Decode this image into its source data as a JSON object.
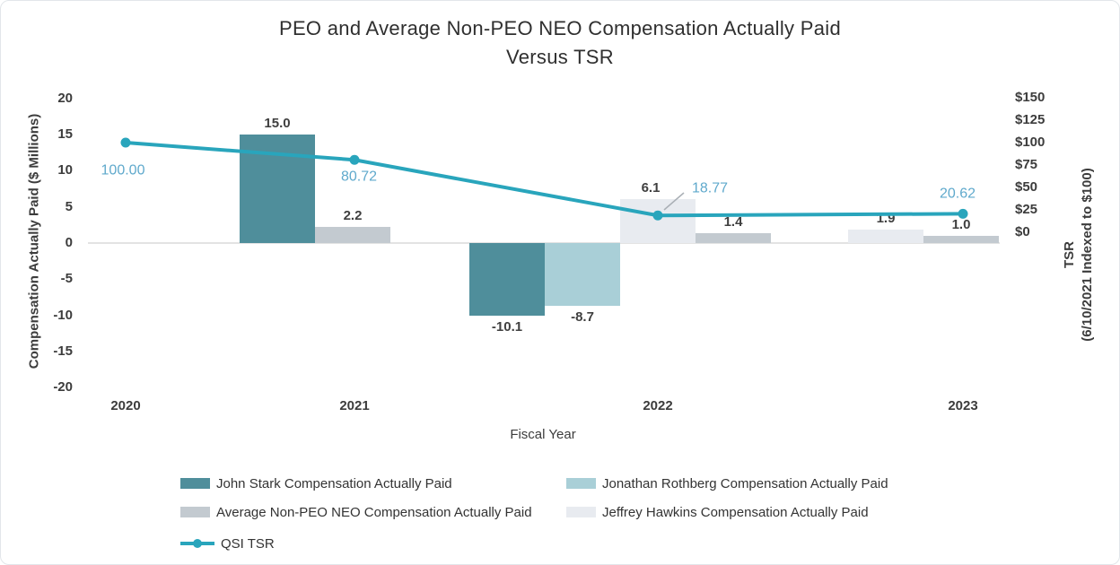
{
  "page": {
    "background": "#ffffff",
    "border_color": "#e2e6ea"
  },
  "chart_data": {
    "type": "combo-bar-line",
    "title_line1": "PEO and Average Non-PEO NEO Compensation Actually Paid",
    "title_line2": "Versus TSR",
    "xlabel": "Fiscal Year",
    "categories": [
      "2020",
      "2021",
      "2022",
      "2023"
    ],
    "left_axis": {
      "label": "Compensation Actually Paid ($ Millions)",
      "ticks": [
        20,
        15,
        10,
        5,
        0,
        -5,
        -10,
        -15,
        -20
      ],
      "range": [
        -20,
        20
      ]
    },
    "right_axis": {
      "label_line1": "TSR",
      "label_line2": "(6/10/2021 Indexed to $100)",
      "ticks": [
        "$150",
        "$125",
        "$100",
        "$75",
        "$50",
        "$25",
        "$0"
      ],
      "range": [
        0,
        150
      ]
    },
    "series_colors": {
      "John Stark Compensation Actually Paid": "#4f8e9b",
      "Jonathan Rothberg Compensation Actually Paid": "#a9cfd7",
      "Average Non-PEO NEO Compensation Actually Paid": "#c3cad0",
      "Jeffrey Hawkins Compensation Actually Paid": "#e8ebf0"
    },
    "bars": [
      {
        "category": "2021",
        "series": "John Stark Compensation Actually Paid",
        "value": 15.0,
        "label": "15.0"
      },
      {
        "category": "2021",
        "series": "Average Non-PEO NEO Compensation Actually Paid",
        "value": 2.2,
        "label": "2.2"
      },
      {
        "category": "2022",
        "series": "John Stark Compensation Actually Paid",
        "value": -10.1,
        "label": "-10.1"
      },
      {
        "category": "2022",
        "series": "Jonathan Rothberg Compensation Actually Paid",
        "value": -8.7,
        "label": "-8.7"
      },
      {
        "category": "2022",
        "series": "Jeffrey Hawkins Compensation Actually Paid",
        "value": 6.1,
        "label": "6.1"
      },
      {
        "category": "2022",
        "series": "Average Non-PEO NEO Compensation Actually Paid",
        "value": 1.4,
        "label": "1.4"
      },
      {
        "category": "2023",
        "series": "Jeffrey Hawkins Compensation Actually Paid",
        "value": 1.9,
        "label": "1.9"
      },
      {
        "category": "2023",
        "series": "Average Non-PEO NEO Compensation Actually Paid",
        "value": 1.0,
        "label": "1.0"
      }
    ],
    "line": {
      "name": "QSI TSR",
      "color": "#29a5bc",
      "label_color": "#5fa9cc",
      "points": [
        {
          "category": "2020",
          "value": 100.0,
          "label": "100.00"
        },
        {
          "category": "2021",
          "value": 80.72,
          "label": "80.72"
        },
        {
          "category": "2022",
          "value": 18.77,
          "label": "18.77"
        },
        {
          "category": "2023",
          "value": 20.62,
          "label": "20.62"
        }
      ]
    },
    "legend": [
      {
        "label": "John Stark Compensation Actually Paid",
        "type": "swatch",
        "color": "#4f8e9b"
      },
      {
        "label": "Jonathan Rothberg Compensation Actually Paid",
        "type": "swatch",
        "color": "#a9cfd7"
      },
      {
        "label": "Average Non-PEO NEO Compensation Actually Paid",
        "type": "swatch",
        "color": "#c3cad0"
      },
      {
        "label": "Jeffrey Hawkins Compensation Actually Paid",
        "type": "swatch",
        "color": "#e8ebf0"
      },
      {
        "label": "QSI TSR",
        "type": "line",
        "color": "#29a5bc"
      }
    ]
  }
}
